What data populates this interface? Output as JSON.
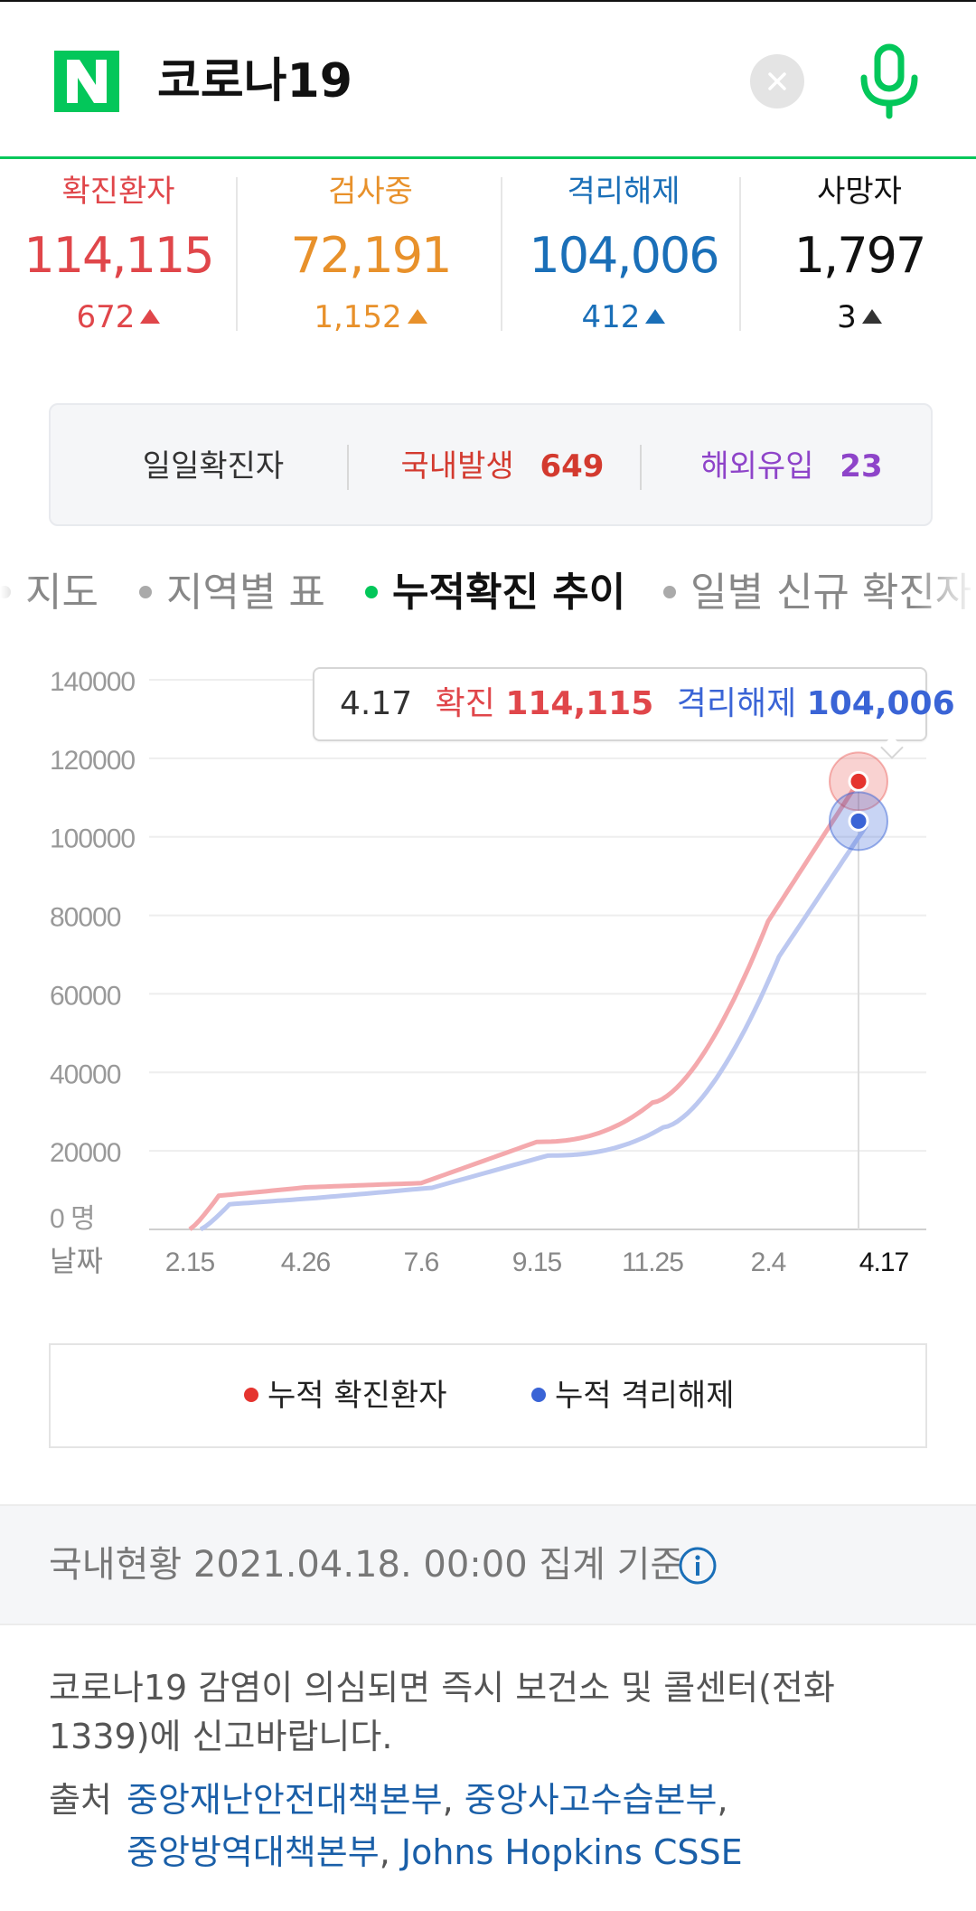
{
  "search": {
    "query": "코로나19",
    "clear_icon": "close-icon",
    "mic_icon": "microphone-icon"
  },
  "colors": {
    "confirmed": "#e0464a",
    "testing": "#e8912b",
    "released": "#1a6fb8",
    "deaths": "#111111",
    "brand": "#03c75a",
    "domestic": "#d33a2f",
    "overseas": "#8e44c9"
  },
  "stats": [
    {
      "label": "확진환자",
      "value": "114,115",
      "delta": "672"
    },
    {
      "label": "검사중",
      "value": "72,191",
      "delta": "1,152"
    },
    {
      "label": "격리해제",
      "value": "104,006",
      "delta": "412"
    },
    {
      "label": "사망자",
      "value": "1,797",
      "delta": "3"
    }
  ],
  "daily": {
    "label": "일일확진자",
    "domestic_label": "국내발생",
    "domestic_value": "649",
    "overseas_label": "해외유입",
    "overseas_value": "23"
  },
  "tabs": [
    {
      "label": "지도",
      "active": false
    },
    {
      "label": "지역별 표",
      "active": false
    },
    {
      "label": "누적확진 추이",
      "active": true
    },
    {
      "label": "일별 신규 확진자",
      "active": false
    }
  ],
  "tooltip": {
    "date": "4.17",
    "confirmed_label": "확진",
    "confirmed_value": "114,115",
    "released_label": "격리해제",
    "released_value": "104,006"
  },
  "chart_data": {
    "type": "line",
    "title": "",
    "xlabel": "날짜",
    "ylabel": "명",
    "ylim": [
      0,
      140000
    ],
    "yticks": [
      "0",
      "20000",
      "40000",
      "60000",
      "80000",
      "100000",
      "120000",
      "140000"
    ],
    "y_unit": "명",
    "xticks": [
      "2.15",
      "4.26",
      "7.6",
      "9.15",
      "11.25",
      "2.4",
      "4.17"
    ],
    "x": [
      "2.15",
      "4.26",
      "7.6",
      "9.15",
      "11.25",
      "2.4",
      "4.17"
    ],
    "series": [
      {
        "name": "누적 확진환자",
        "color": "#f4a9ad",
        "values": [
          30,
          10700,
          11800,
          22300,
          32300,
          78500,
          114115
        ]
      },
      {
        "name": "누적 격리해제",
        "color": "#bcc8f0",
        "values": [
          0,
          8000,
          10600,
          18800,
          26000,
          69500,
          104006
        ]
      }
    ],
    "grid": true,
    "legend": "bottom"
  },
  "legend": {
    "confirmed": "누적 확진환자",
    "released": "누적 격리해제"
  },
  "footer": {
    "basis": "국내현황 2021.04.18. 00:00 집계 기준",
    "notice": "코로나19 감염이 의심되면 즉시 보건소 및 콜센터(전화 1339)에 신고바랍니다.",
    "source_label": "출처",
    "sources": [
      "중앙재난안전대책본부",
      "중앙사고수습본부",
      "중앙방역대책본부",
      "Johns Hopkins CSSE"
    ]
  }
}
